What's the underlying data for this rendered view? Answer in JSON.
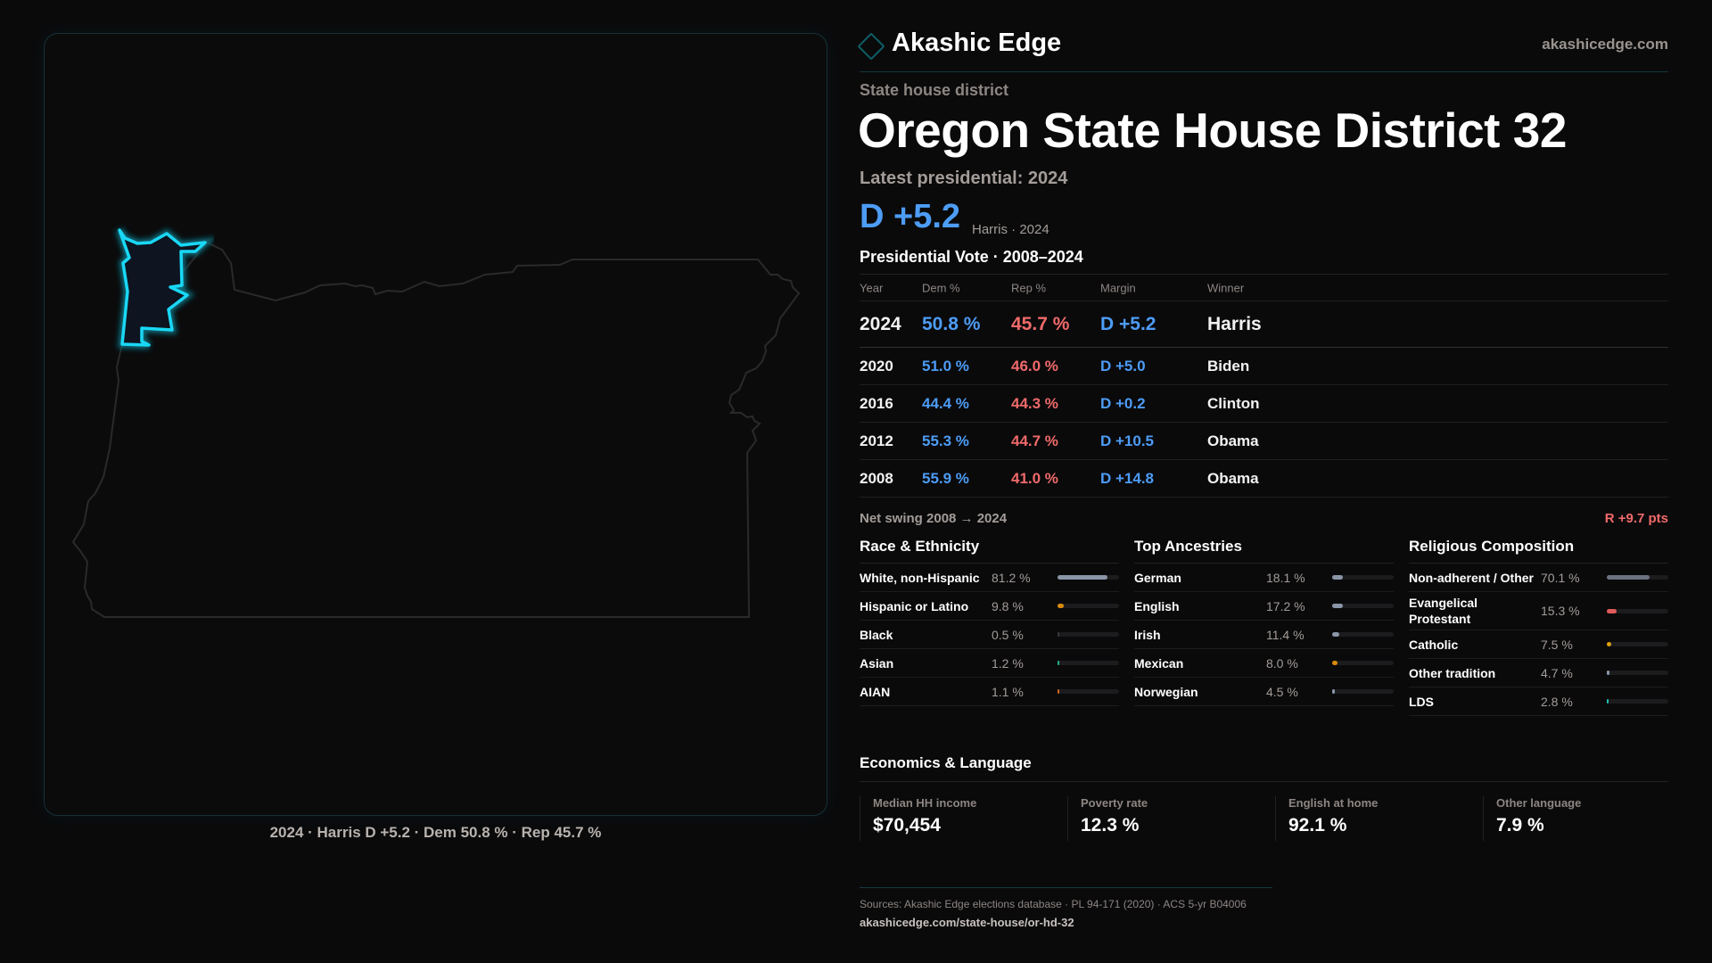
{
  "header": {
    "brand": "Akashic Edge",
    "site": "akashicedge.com",
    "logo_icon": "diamond-icon"
  },
  "district": {
    "kind": "State house district",
    "title": "Oregon State House District 32",
    "latest": "Latest presidential: 2024",
    "margin": "D +5.2",
    "margin_sub": "Harris · 2024"
  },
  "map": {
    "caption": "2024 · Harris D +5.2 · Dem 50.8 % · Rep 45.7 %",
    "highlight_color": "#19d8f5"
  },
  "votes": {
    "title": "Presidential Vote · 2008–2024",
    "headers": [
      "Year",
      "Dem %",
      "Rep %",
      "Margin",
      "Winner"
    ],
    "rows": [
      {
        "year": "2024",
        "dem": "50.8 %",
        "rep": "45.7 %",
        "margin": "D +5.2",
        "winner": "Harris"
      },
      {
        "year": "2020",
        "dem": "51.0 %",
        "rep": "46.0 %",
        "margin": "D +5.0",
        "winner": "Biden"
      },
      {
        "year": "2016",
        "dem": "44.4 %",
        "rep": "44.3 %",
        "margin": "D +0.2",
        "winner": "Clinton"
      },
      {
        "year": "2012",
        "dem": "55.3 %",
        "rep": "44.7 %",
        "margin": "D +10.5",
        "winner": "Obama"
      },
      {
        "year": "2008",
        "dem": "55.9 %",
        "rep": "41.0 %",
        "margin": "D +14.8",
        "winner": "Obama"
      }
    ],
    "swing_label": "Net swing 2008 → 2024",
    "swing_value": "R +9.7 pts"
  },
  "colors": {
    "dem": "#4d9cf5",
    "rep": "#f06a6a"
  },
  "sections": [
    {
      "title": "Race & Ethnicity",
      "items": [
        {
          "label": "White, non-Hispanic",
          "value": "81.2 %",
          "pct": 81.2,
          "color": "#8a96a8"
        },
        {
          "label": "Hispanic or Latino",
          "value": "9.8 %",
          "pct": 9.8,
          "color": "#d98a0b"
        },
        {
          "label": "Black",
          "value": "0.5 %",
          "pct": 0.5,
          "color": "#3a3a3e"
        },
        {
          "label": "Asian",
          "value": "1.2 %",
          "pct": 1.2,
          "color": "#20b090"
        },
        {
          "label": "AIAN",
          "value": "1.1 %",
          "pct": 1.1,
          "color": "#c8661a"
        }
      ]
    },
    {
      "title": "Top Ancestries",
      "items": [
        {
          "label": "German",
          "value": "18.1 %",
          "pct": 18.1,
          "color": "#8a96a8"
        },
        {
          "label": "English",
          "value": "17.2 %",
          "pct": 17.2,
          "color": "#8a96a8"
        },
        {
          "label": "Irish",
          "value": "11.4 %",
          "pct": 11.4,
          "color": "#8a96a8"
        },
        {
          "label": "Mexican",
          "value": "8.0 %",
          "pct": 8.0,
          "color": "#d98a0b"
        },
        {
          "label": "Norwegian",
          "value": "4.5 %",
          "pct": 4.5,
          "color": "#8a96a8"
        }
      ]
    },
    {
      "title": "Religious Composition",
      "items": [
        {
          "label": "Non-adherent / Other",
          "value": "70.1 %",
          "pct": 70.1,
          "color": "#6b7280"
        },
        {
          "label": "Evangelical Protestant",
          "value": "15.3 %",
          "pct": 15.3,
          "color": "#e05a5a"
        },
        {
          "label": "Catholic",
          "value": "7.5 %",
          "pct": 7.5,
          "color": "#e0a010"
        },
        {
          "label": "Other tradition",
          "value": "4.7 %",
          "pct": 4.7,
          "color": "#8a96a8"
        },
        {
          "label": "LDS",
          "value": "2.8 %",
          "pct": 2.8,
          "color": "#20c0b0"
        }
      ]
    }
  ],
  "economics": {
    "title": "Economics & Language",
    "stats": [
      {
        "label": "Median HH income",
        "value": "$70,454"
      },
      {
        "label": "Poverty rate",
        "value": "12.3 %"
      },
      {
        "label": "English at home",
        "value": "92.1 %"
      },
      {
        "label": "Other language",
        "value": "7.9 %"
      }
    ]
  },
  "footer": {
    "sources": "Sources: Akashic Edge elections database · PL 94-171 (2020) · ACS 5-yr B04006",
    "url": "akashicedge.com/state-house/or-hd-32"
  }
}
